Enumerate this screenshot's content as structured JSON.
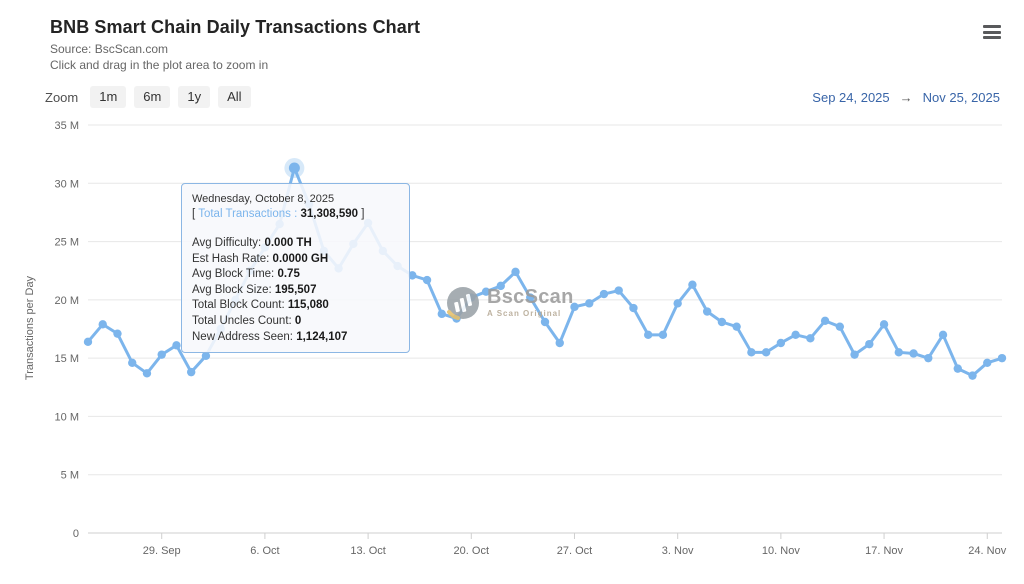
{
  "header": {
    "title": "BNB Smart Chain Daily Transactions Chart",
    "source_line": "Source: BscScan.com",
    "hint_line": "Click and drag in the plot area to zoom in"
  },
  "toolbar": {
    "zoom_label": "Zoom",
    "buttons": [
      "1m",
      "6m",
      "1y",
      "All"
    ],
    "range_from": "Sep 24, 2025",
    "range_arrow": "→",
    "range_to": "Nov 25, 2025"
  },
  "watermark": {
    "brand": "BscScan",
    "tagline": "A Scan Original"
  },
  "tooltip": {
    "date": "Wednesday, October 8, 2025",
    "bracket_open": "[",
    "series_label": "Total Transactions",
    "separator": ":",
    "series_value": "31,308,590",
    "bracket_close": "]",
    "rows": [
      {
        "label": "Avg Difficulty:",
        "value": "0.000 TH"
      },
      {
        "label": "Est Hash Rate:",
        "value": "0.0000 GH"
      },
      {
        "label": "Avg Block Time:",
        "value": "0.75"
      },
      {
        "label": "Avg Block Size:",
        "value": "195,507"
      },
      {
        "label": "Total Block Count:",
        "value": "115,080"
      },
      {
        "label": "Total Uncles Count:",
        "value": "0"
      },
      {
        "label": "New Address Seen:",
        "value": "1,124,107"
      }
    ]
  },
  "chart_data": {
    "type": "line",
    "title": "BNB Smart Chain Daily Transactions Chart",
    "xlabel": "",
    "ylabel": "Transactions per Day",
    "unit": "millions of transactions per day",
    "ylim_m": [
      0,
      35
    ],
    "grid": true,
    "legend": false,
    "colors": {
      "series": "#7cb5ec",
      "axis": "#cfcfcf",
      "grid": "#e7e7e7",
      "label": "#666666",
      "range_text": "#3965a8"
    },
    "y_ticks": [
      {
        "value_m": 0,
        "label": "0"
      },
      {
        "value_m": 5,
        "label": "5 M"
      },
      {
        "value_m": 10,
        "label": "10 M"
      },
      {
        "value_m": 15,
        "label": "15 M"
      },
      {
        "value_m": 20,
        "label": "20 M"
      },
      {
        "value_m": 25,
        "label": "25 M"
      },
      {
        "value_m": 30,
        "label": "30 M"
      },
      {
        "value_m": 35,
        "label": "35 M"
      }
    ],
    "x_ticks": [
      {
        "index": 5,
        "label": "29. Sep"
      },
      {
        "index": 12,
        "label": "6. Oct"
      },
      {
        "index": 19,
        "label": "13. Oct"
      },
      {
        "index": 26,
        "label": "20. Oct"
      },
      {
        "index": 33,
        "label": "27. Oct"
      },
      {
        "index": 40,
        "label": "3. Nov"
      },
      {
        "index": 47,
        "label": "10. Nov"
      },
      {
        "index": 54,
        "label": "17. Nov"
      },
      {
        "index": 61,
        "label": "24. Nov"
      }
    ],
    "x": [
      "Sep 24",
      "Sep 25",
      "Sep 26",
      "Sep 27",
      "Sep 28",
      "Sep 29",
      "Sep 30",
      "Oct 1",
      "Oct 2",
      "Oct 3",
      "Oct 4",
      "Oct 5",
      "Oct 6",
      "Oct 7",
      "Oct 8",
      "Oct 9",
      "Oct 10",
      "Oct 11",
      "Oct 12",
      "Oct 13",
      "Oct 14",
      "Oct 15",
      "Oct 16",
      "Oct 17",
      "Oct 18",
      "Oct 19",
      "Oct 20",
      "Oct 21",
      "Oct 22",
      "Oct 23",
      "Oct 24",
      "Oct 25",
      "Oct 26",
      "Oct 27",
      "Oct 28",
      "Oct 29",
      "Oct 30",
      "Oct 31",
      "Nov 1",
      "Nov 2",
      "Nov 3",
      "Nov 4",
      "Nov 5",
      "Nov 6",
      "Nov 7",
      "Nov 8",
      "Nov 9",
      "Nov 10",
      "Nov 11",
      "Nov 12",
      "Nov 13",
      "Nov 14",
      "Nov 15",
      "Nov 16",
      "Nov 17",
      "Nov 18",
      "Nov 19",
      "Nov 20",
      "Nov 21",
      "Nov 22",
      "Nov 23",
      "Nov 24",
      "Nov 25"
    ],
    "values_m": [
      16.4,
      17.9,
      17.1,
      14.6,
      13.7,
      15.3,
      16.1,
      13.8,
      15.2,
      17.5,
      20.0,
      22.5,
      24.5,
      26.5,
      31.309,
      28.2,
      24.2,
      22.7,
      24.8,
      26.6,
      24.2,
      22.9,
      22.1,
      21.7,
      18.8,
      18.4,
      20.2,
      20.7,
      21.2,
      22.4,
      20.2,
      18.1,
      16.3,
      19.4,
      19.7,
      20.5,
      20.8,
      19.3,
      17.0,
      17.0,
      19.7,
      21.3,
      19.0,
      18.1,
      17.7,
      15.5,
      15.5,
      16.3,
      17.0,
      16.7,
      18.2,
      17.7,
      15.3,
      16.2,
      17.9,
      15.5,
      15.4,
      15.0,
      17.0,
      14.1,
      13.5,
      14.6,
      15.0
    ],
    "highlight": {
      "index": 14,
      "date": "Wednesday, October 8, 2025",
      "total_transactions": 31308590
    }
  }
}
